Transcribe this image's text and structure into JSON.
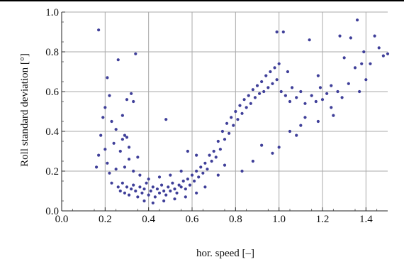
{
  "chart_data": {
    "type": "scatter",
    "title": "",
    "xlabel": "hor. speed [–]",
    "ylabel": "Roll standard deviation [°]",
    "xlim": [
      0.0,
      1.5
    ],
    "ylim": [
      0.0,
      1.0
    ],
    "x_ticks": [
      "0.0",
      "0.2",
      "0.4",
      "0.6",
      "0.8",
      "1.0",
      "1.2",
      "1.4"
    ],
    "y_ticks": [
      "0.0",
      "0.2",
      "0.4",
      "0.6",
      "0.8",
      "1.0"
    ],
    "grid": true,
    "marker_color": "#3f3f99",
    "series": [
      {
        "points": [
          [
            0.17,
            0.91
          ],
          [
            0.16,
            0.22
          ],
          [
            0.17,
            0.28
          ],
          [
            0.18,
            0.38
          ],
          [
            0.19,
            0.47
          ],
          [
            0.2,
            0.52
          ],
          [
            0.21,
            0.67
          ],
          [
            0.22,
            0.58
          ],
          [
            0.2,
            0.31
          ],
          [
            0.21,
            0.24
          ],
          [
            0.23,
            0.45
          ],
          [
            0.24,
            0.34
          ],
          [
            0.25,
            0.41
          ],
          [
            0.26,
            0.76
          ],
          [
            0.27,
            0.3
          ],
          [
            0.28,
            0.36
          ],
          [
            0.29,
            0.38
          ],
          [
            0.3,
            0.37
          ],
          [
            0.31,
            0.32
          ],
          [
            0.32,
            0.59
          ],
          [
            0.33,
            0.55
          ],
          [
            0.34,
            0.79
          ],
          [
            0.35,
            0.27
          ],
          [
            0.28,
            0.48
          ],
          [
            0.3,
            0.56
          ],
          [
            0.25,
            0.21
          ],
          [
            0.23,
            0.14
          ],
          [
            0.22,
            0.19
          ],
          [
            0.29,
            0.22
          ],
          [
            0.31,
            0.26
          ],
          [
            0.26,
            0.12
          ],
          [
            0.27,
            0.1
          ],
          [
            0.28,
            0.14
          ],
          [
            0.29,
            0.09
          ],
          [
            0.3,
            0.12
          ],
          [
            0.31,
            0.08
          ],
          [
            0.32,
            0.11
          ],
          [
            0.33,
            0.13
          ],
          [
            0.34,
            0.1
          ],
          [
            0.35,
            0.07
          ],
          [
            0.36,
            0.12
          ],
          [
            0.37,
            0.09
          ],
          [
            0.38,
            0.11
          ],
          [
            0.39,
            0.14
          ],
          [
            0.4,
            0.08
          ],
          [
            0.41,
            0.1
          ],
          [
            0.42,
            0.12
          ],
          [
            0.43,
            0.07
          ],
          [
            0.44,
            0.11
          ],
          [
            0.45,
            0.09
          ],
          [
            0.46,
            0.13
          ],
          [
            0.47,
            0.1
          ],
          [
            0.48,
            0.46
          ],
          [
            0.48,
            0.08
          ],
          [
            0.49,
            0.12
          ],
          [
            0.5,
            0.1
          ],
          [
            0.51,
            0.14
          ],
          [
            0.52,
            0.11
          ],
          [
            0.53,
            0.09
          ],
          [
            0.54,
            0.13
          ],
          [
            0.55,
            0.12
          ],
          [
            0.56,
            0.15
          ],
          [
            0.57,
            0.11
          ],
          [
            0.58,
            0.16
          ],
          [
            0.59,
            0.13
          ],
          [
            0.6,
            0.18
          ],
          [
            0.61,
            0.15
          ],
          [
            0.62,
            0.2
          ],
          [
            0.63,
            0.17
          ],
          [
            0.64,
            0.22
          ],
          [
            0.65,
            0.19
          ],
          [
            0.66,
            0.24
          ],
          [
            0.67,
            0.21
          ],
          [
            0.68,
            0.28
          ],
          [
            0.69,
            0.25
          ],
          [
            0.7,
            0.3
          ],
          [
            0.71,
            0.27
          ],
          [
            0.72,
            0.35
          ],
          [
            0.73,
            0.31
          ],
          [
            0.74,
            0.4
          ],
          [
            0.75,
            0.36
          ],
          [
            0.76,
            0.44
          ],
          [
            0.77,
            0.39
          ],
          [
            0.78,
            0.47
          ],
          [
            0.79,
            0.43
          ],
          [
            0.8,
            0.5
          ],
          [
            0.81,
            0.46
          ],
          [
            0.82,
            0.53
          ],
          [
            0.83,
            0.49
          ],
          [
            0.84,
            0.56
          ],
          [
            0.85,
            0.52
          ],
          [
            0.86,
            0.58
          ],
          [
            0.87,
            0.54
          ],
          [
            0.88,
            0.61
          ],
          [
            0.89,
            0.57
          ],
          [
            0.9,
            0.63
          ],
          [
            0.91,
            0.59
          ],
          [
            0.92,
            0.65
          ],
          [
            0.93,
            0.6
          ],
          [
            0.94,
            0.68
          ],
          [
            0.95,
            0.62
          ],
          [
            0.96,
            0.7
          ],
          [
            0.97,
            0.64
          ],
          [
            0.98,
            0.72
          ],
          [
            0.99,
            0.66
          ],
          [
            1.0,
            0.74
          ],
          [
            1.01,
            0.6
          ],
          [
            1.02,
            0.9
          ],
          [
            1.03,
            0.58
          ],
          [
            1.04,
            0.7
          ],
          [
            0.99,
            0.9
          ],
          [
            1.05,
            0.55
          ],
          [
            1.06,
            0.62
          ],
          [
            1.08,
            0.57
          ],
          [
            1.1,
            0.6
          ],
          [
            1.12,
            0.54
          ],
          [
            1.14,
            0.86
          ],
          [
            1.15,
            0.58
          ],
          [
            1.17,
            0.55
          ],
          [
            1.18,
            0.68
          ],
          [
            1.19,
            0.62
          ],
          [
            1.2,
            0.56
          ],
          [
            1.22,
            0.59
          ],
          [
            1.24,
            0.63
          ],
          [
            1.25,
            0.48
          ],
          [
            1.27,
            0.6
          ],
          [
            1.28,
            0.88
          ],
          [
            1.29,
            0.57
          ],
          [
            1.3,
            0.77
          ],
          [
            1.32,
            0.64
          ],
          [
            1.33,
            0.87
          ],
          [
            1.35,
            0.72
          ],
          [
            1.36,
            0.96
          ],
          [
            1.37,
            0.6
          ],
          [
            1.38,
            0.74
          ],
          [
            1.39,
            0.8
          ],
          [
            1.4,
            0.66
          ],
          [
            1.42,
            0.74
          ],
          [
            1.44,
            0.88
          ],
          [
            1.46,
            0.82
          ],
          [
            1.48,
            0.78
          ],
          [
            1.5,
            0.79
          ],
          [
            1.1,
            0.43
          ],
          [
            1.08,
            0.38
          ],
          [
            0.97,
            0.29
          ],
          [
            1.0,
            0.32
          ],
          [
            0.92,
            0.33
          ],
          [
            0.83,
            0.2
          ],
          [
            0.88,
            0.25
          ],
          [
            1.05,
            0.4
          ],
          [
            1.12,
            0.47
          ],
          [
            1.18,
            0.45
          ],
          [
            1.24,
            0.52
          ],
          [
            0.72,
            0.18
          ],
          [
            0.75,
            0.23
          ],
          [
            0.66,
            0.12
          ],
          [
            0.58,
            0.3
          ],
          [
            0.62,
            0.28
          ],
          [
            0.55,
            0.2
          ],
          [
            0.5,
            0.18
          ],
          [
            0.45,
            0.17
          ],
          [
            0.4,
            0.16
          ],
          [
            0.36,
            0.18
          ],
          [
            0.33,
            0.2
          ],
          [
            0.38,
            0.05
          ],
          [
            0.42,
            0.04
          ],
          [
            0.47,
            0.05
          ],
          [
            0.52,
            0.06
          ],
          [
            0.57,
            0.07
          ],
          [
            0.62,
            0.09
          ]
        ]
      }
    ]
  }
}
